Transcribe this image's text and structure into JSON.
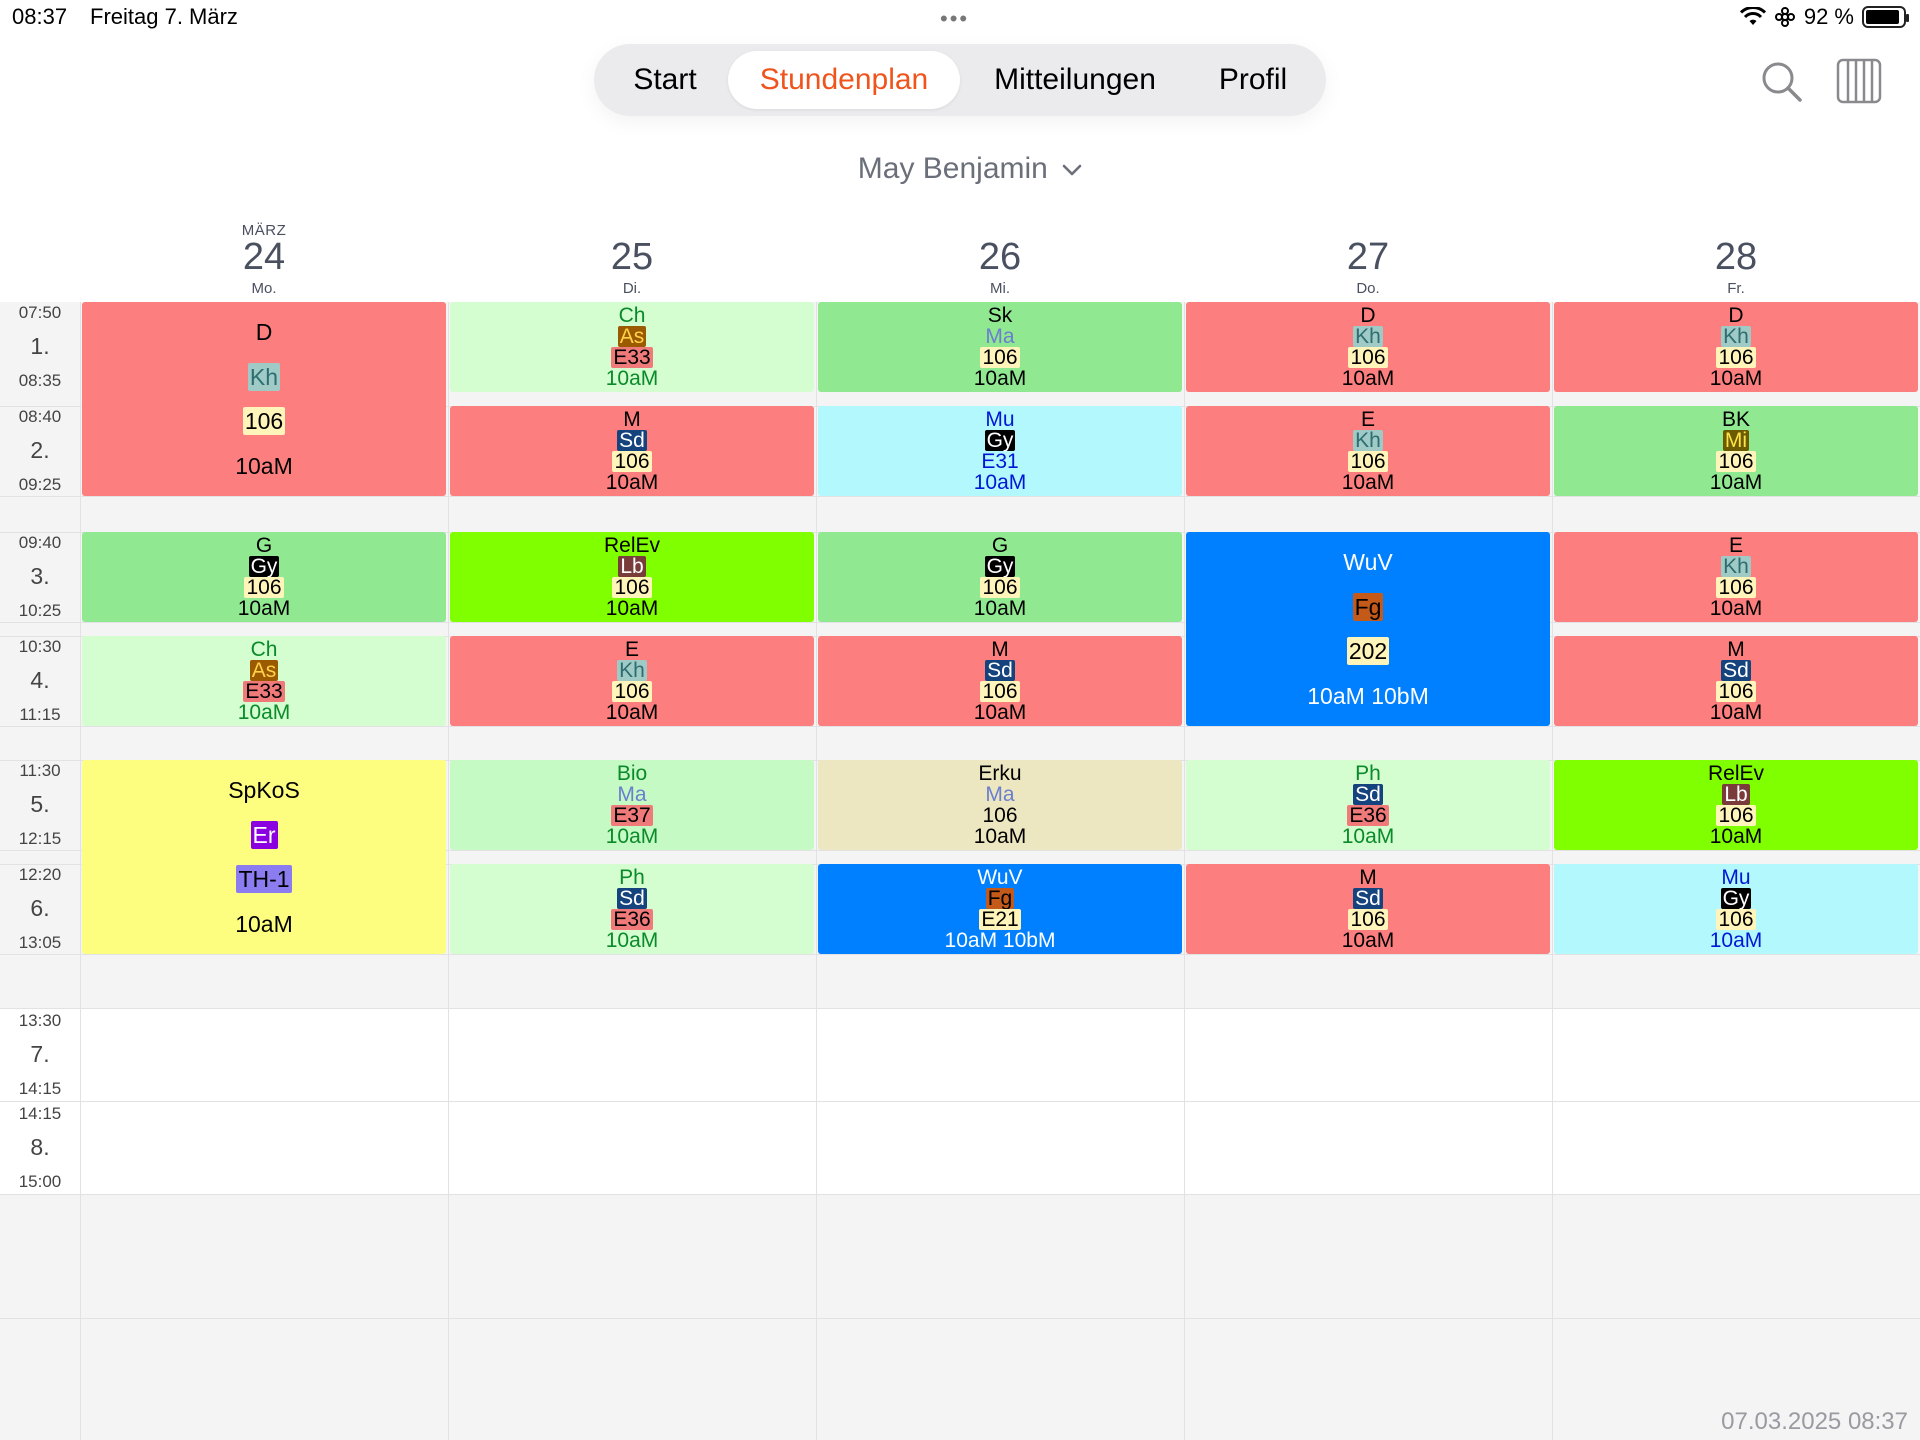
{
  "status_bar": {
    "time": "08:37",
    "date": "Freitag 7. März",
    "battery_text": "92 %",
    "battery_level": 0.92,
    "icons": [
      "wifi-icon",
      "vpn-icon",
      "battery-icon"
    ]
  },
  "nav": {
    "tabs": [
      "Start",
      "Stundenplan",
      "Mitteilungen",
      "Profil"
    ],
    "active": "Stundenplan",
    "active_color": "#f0541d",
    "icons": [
      "search-icon",
      "week-view-icon"
    ]
  },
  "selector": {
    "name": "May Benjamin"
  },
  "days": [
    {
      "month": "MÄRZ",
      "num": "24",
      "wd": "Mo."
    },
    {
      "month": "",
      "num": "25",
      "wd": "Di."
    },
    {
      "month": "",
      "num": "26",
      "wd": "Mi."
    },
    {
      "month": "",
      "num": "27",
      "wd": "Do."
    },
    {
      "month": "",
      "num": "28",
      "wd": "Fr."
    }
  ],
  "periods": [
    {
      "start": "07:50",
      "num": "1.",
      "end": "08:35"
    },
    {
      "start": "08:40",
      "num": "2.",
      "end": "09:25"
    },
    {
      "start": "09:40",
      "num": "3.",
      "end": "10:25"
    },
    {
      "start": "10:30",
      "num": "4.",
      "end": "11:15"
    },
    {
      "start": "11:30",
      "num": "5.",
      "end": "12:15"
    },
    {
      "start": "12:20",
      "num": "6.",
      "end": "13:05"
    },
    {
      "start": "13:30",
      "num": "7.",
      "end": "14:15"
    },
    {
      "start": "14:15",
      "num": "8.",
      "end": "15:00"
    }
  ],
  "colors": {
    "red": "#fd7e7e",
    "lightgreen": "#d4fdd0",
    "green": "#90e891",
    "lime": "#80ff00",
    "cyan": "#b3f8fc",
    "blue": "#0080ff",
    "yellow": "#fdfd80",
    "beige": "#ede7c1",
    "bio": "#c6fac4"
  },
  "lessons": [
    {
      "day": 0,
      "p": 1,
      "len": 2,
      "bg": "#fd7e7e",
      "fg": "#000",
      "subj": "D",
      "teacher": "Kh",
      "tbg": "#9fcac6",
      "tfg": "#2e6e72",
      "room": "106",
      "rbg": "#fff4ba",
      "rfg": "#000",
      "cls": "10aM"
    },
    {
      "day": 0,
      "p": 3,
      "len": 1,
      "bg": "#90e891",
      "fg": "#000",
      "subj": "G",
      "teacher": "Gy",
      "tbg": "#000",
      "tfg": "#fff",
      "room": "106",
      "rbg": "#fff4ba",
      "rfg": "#000",
      "cls": "10aM"
    },
    {
      "day": 0,
      "p": 4,
      "len": 1,
      "bg": "#d4fdd0",
      "fg": "#0b8a2a",
      "subj": "Ch",
      "teacher": "As",
      "tbg": "#9b5a00",
      "tfg": "#ffd24a",
      "room": "E33",
      "rbg": "#f07a7a",
      "rfg": "#000",
      "cls": "10aM"
    },
    {
      "day": 0,
      "p": 5,
      "len": 2,
      "bg": "#fdfd80",
      "fg": "#000",
      "subj": "SpKoS",
      "teacher": "Er",
      "tbg": "#8a00e0",
      "tfg": "#fff",
      "room": "TH-1",
      "rbg": "#8b7cf0",
      "rfg": "#000",
      "cls": "10aM"
    },
    {
      "day": 1,
      "p": 1,
      "len": 1,
      "bg": "#d4fdd0",
      "fg": "#0b8a2a",
      "subj": "Ch",
      "teacher": "As",
      "tbg": "#9b5a00",
      "tfg": "#ffd24a",
      "room": "E33",
      "rbg": "#f07a7a",
      "rfg": "#000",
      "cls": "10aM"
    },
    {
      "day": 1,
      "p": 2,
      "len": 1,
      "bg": "#fd7e7e",
      "fg": "#000",
      "subj": "M",
      "teacher": "Sd",
      "tbg": "#14437e",
      "tfg": "#fff",
      "room": "106",
      "rbg": "#fff4ba",
      "rfg": "#000",
      "cls": "10aM"
    },
    {
      "day": 1,
      "p": 3,
      "len": 1,
      "bg": "#80ff00",
      "fg": "#000",
      "subj": "RelEv",
      "teacher": "Lb",
      "tbg": "#7a3b3b",
      "tfg": "#fff",
      "room": "106",
      "rbg": "#fff4ba",
      "rfg": "#000",
      "cls": "10aM"
    },
    {
      "day": 1,
      "p": 4,
      "len": 1,
      "bg": "#fd7e7e",
      "fg": "#000",
      "subj": "E",
      "teacher": "Kh",
      "tbg": "#9fcac6",
      "tfg": "#2e6e72",
      "room": "106",
      "rbg": "#fff4ba",
      "rfg": "#000",
      "cls": "10aM"
    },
    {
      "day": 1,
      "p": 5,
      "len": 1,
      "bg": "#c6fac4",
      "fg": "#0b8a2a",
      "subj": "Bio",
      "teacher": "Ma",
      "tbg": "transparent",
      "tfg": "#6b7fcf",
      "room": "E37",
      "rbg": "#f07a7a",
      "rfg": "#000",
      "cls": "10aM"
    },
    {
      "day": 1,
      "p": 6,
      "len": 1,
      "bg": "#d4fdd0",
      "fg": "#0b8a2a",
      "subj": "Ph",
      "teacher": "Sd",
      "tbg": "#14437e",
      "tfg": "#fff",
      "room": "E36",
      "rbg": "#f07a7a",
      "rfg": "#000",
      "cls": "10aM"
    },
    {
      "day": 2,
      "p": 1,
      "len": 1,
      "bg": "#90e891",
      "fg": "#000",
      "subj": "Sk",
      "teacher": "Ma",
      "tbg": "transparent",
      "tfg": "#6b7fcf",
      "room": "106",
      "rbg": "#fff4ba",
      "rfg": "#000",
      "cls": "10aM"
    },
    {
      "day": 2,
      "p": 2,
      "len": 1,
      "bg": "#b3f8fc",
      "fg": "#0018d6",
      "subj": "Mu",
      "teacher": "Gy",
      "tbg": "#000",
      "tfg": "#fff",
      "room": "E31",
      "rbg": "transparent",
      "rfg": "#0018d6",
      "cls": "10aM"
    },
    {
      "day": 2,
      "p": 3,
      "len": 1,
      "bg": "#90e891",
      "fg": "#000",
      "subj": "G",
      "teacher": "Gy",
      "tbg": "#000",
      "tfg": "#fff",
      "room": "106",
      "rbg": "#fff4ba",
      "rfg": "#000",
      "cls": "10aM"
    },
    {
      "day": 2,
      "p": 4,
      "len": 1,
      "bg": "#fd7e7e",
      "fg": "#000",
      "subj": "M",
      "teacher": "Sd",
      "tbg": "#14437e",
      "tfg": "#fff",
      "room": "106",
      "rbg": "#fff4ba",
      "rfg": "#000",
      "cls": "10aM"
    },
    {
      "day": 2,
      "p": 5,
      "len": 1,
      "bg": "#ede7c1",
      "fg": "#000",
      "subj": "Erku",
      "teacher": "Ma",
      "tbg": "transparent",
      "tfg": "#6b7fcf",
      "room": "106",
      "rbg": "transparent",
      "rfg": "#000",
      "cls": "10aM"
    },
    {
      "day": 2,
      "p": 6,
      "len": 1,
      "bg": "#0080ff",
      "fg": "#fff",
      "subj": "WuV",
      "teacher": "Fg",
      "tbg": "#c45a1a",
      "tfg": "#000",
      "room": "E21",
      "rbg": "#fff4ba",
      "rfg": "#000",
      "cls": "10aM 10bM"
    },
    {
      "day": 3,
      "p": 1,
      "len": 1,
      "bg": "#fd7e7e",
      "fg": "#000",
      "subj": "D",
      "teacher": "Kh",
      "tbg": "#9fcac6",
      "tfg": "#2e6e72",
      "room": "106",
      "rbg": "#fff4ba",
      "rfg": "#000",
      "cls": "10aM"
    },
    {
      "day": 3,
      "p": 2,
      "len": 1,
      "bg": "#fd7e7e",
      "fg": "#000",
      "subj": "E",
      "teacher": "Kh",
      "tbg": "#9fcac6",
      "tfg": "#2e6e72",
      "room": "106",
      "rbg": "#fff4ba",
      "rfg": "#000",
      "cls": "10aM"
    },
    {
      "day": 3,
      "p": 3,
      "len": 2,
      "bg": "#0080ff",
      "fg": "#fff",
      "subj": "WuV",
      "teacher": "Fg",
      "tbg": "#c45a1a",
      "tfg": "#000",
      "room": "202",
      "rbg": "#fff4ba",
      "rfg": "#000",
      "cls": "10aM 10bM"
    },
    {
      "day": 3,
      "p": 5,
      "len": 1,
      "bg": "#d4fdd0",
      "fg": "#0b8a2a",
      "subj": "Ph",
      "teacher": "Sd",
      "tbg": "#14437e",
      "tfg": "#fff",
      "room": "E36",
      "rbg": "#f07a7a",
      "rfg": "#000",
      "cls": "10aM"
    },
    {
      "day": 3,
      "p": 6,
      "len": 1,
      "bg": "#fd7e7e",
      "fg": "#000",
      "subj": "M",
      "teacher": "Sd",
      "tbg": "#14437e",
      "tfg": "#fff",
      "room": "106",
      "rbg": "#fff4ba",
      "rfg": "#000",
      "cls": "10aM"
    },
    {
      "day": 4,
      "p": 1,
      "len": 1,
      "bg": "#fd7e7e",
      "fg": "#000",
      "subj": "D",
      "teacher": "Kh",
      "tbg": "#9fcac6",
      "tfg": "#2e6e72",
      "room": "106",
      "rbg": "#fff4ba",
      "rfg": "#000",
      "cls": "10aM"
    },
    {
      "day": 4,
      "p": 2,
      "len": 1,
      "bg": "#90e891",
      "fg": "#000",
      "subj": "BK",
      "teacher": "Mi",
      "tbg": "#6b5a00",
      "tfg": "#ffe24a",
      "room": "106",
      "rbg": "#fff4ba",
      "rfg": "#000",
      "cls": "10aM"
    },
    {
      "day": 4,
      "p": 3,
      "len": 1,
      "bg": "#fd7e7e",
      "fg": "#000",
      "subj": "E",
      "teacher": "Kh",
      "tbg": "#9fcac6",
      "tfg": "#2e6e72",
      "room": "106",
      "rbg": "#fff4ba",
      "rfg": "#000",
      "cls": "10aM"
    },
    {
      "day": 4,
      "p": 4,
      "len": 1,
      "bg": "#fd7e7e",
      "fg": "#000",
      "subj": "M",
      "teacher": "Sd",
      "tbg": "#14437e",
      "tfg": "#fff",
      "room": "106",
      "rbg": "#fff4ba",
      "rfg": "#000",
      "cls": "10aM"
    },
    {
      "day": 4,
      "p": 5,
      "len": 1,
      "bg": "#80ff00",
      "fg": "#000",
      "subj": "RelEv",
      "teacher": "Lb",
      "tbg": "#7a3b3b",
      "tfg": "#fff",
      "room": "106",
      "rbg": "#fff4ba",
      "rfg": "#000",
      "cls": "10aM"
    },
    {
      "day": 4,
      "p": 6,
      "len": 1,
      "bg": "#b3f8fc",
      "fg": "#0018d6",
      "subj": "Mu",
      "teacher": "Gy",
      "tbg": "#000",
      "tfg": "#fff",
      "room": "106",
      "rbg": "#fff4ba",
      "rfg": "#000",
      "cls": "10aM"
    }
  ],
  "footer": {
    "timestamp": "07.03.2025 08:37"
  }
}
